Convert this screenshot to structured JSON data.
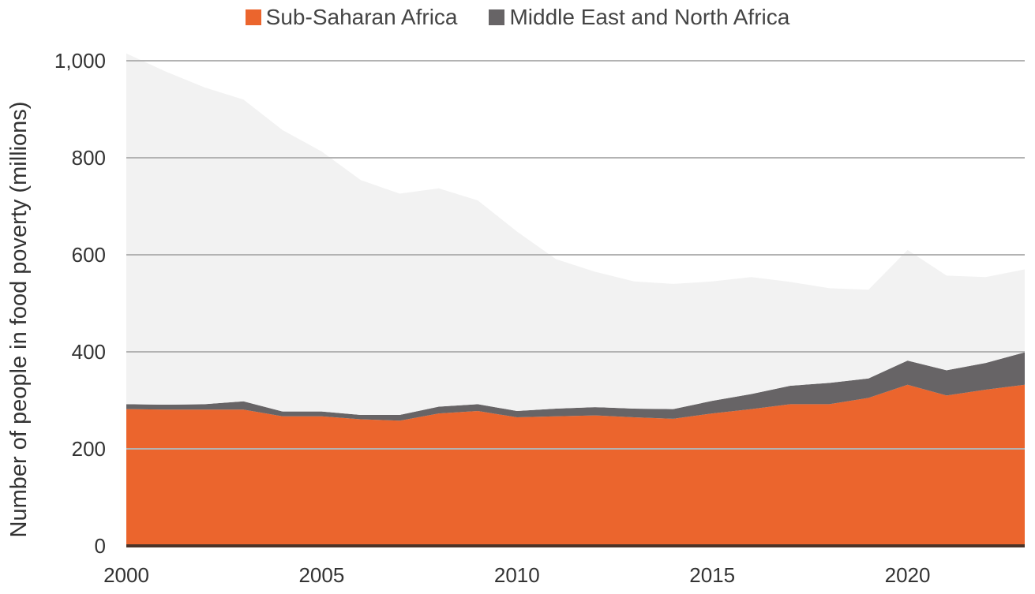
{
  "chart_data": {
    "type": "area",
    "stacked": true,
    "x": [
      2000,
      2001,
      2002,
      2003,
      2004,
      2005,
      2006,
      2007,
      2008,
      2009,
      2010,
      2011,
      2012,
      2013,
      2014,
      2015,
      2016,
      2017,
      2018,
      2019,
      2020,
      2021,
      2022,
      2023
    ],
    "series": [
      {
        "name": "Sub-Saharan Africa",
        "color": "#EB652D",
        "values": [
          282,
          281,
          281,
          281,
          267,
          267,
          261,
          258,
          273,
          278,
          265,
          267,
          269,
          265,
          262,
          273,
          282,
          292,
          292,
          305,
          332,
          310,
          322,
          332
        ]
      },
      {
        "name": "Middle East and North Africa",
        "color": "#676466",
        "values": [
          10,
          10,
          11,
          17,
          10,
          10,
          9,
          12,
          14,
          14,
          13,
          16,
          17,
          18,
          20,
          26,
          31,
          38,
          44,
          40,
          50,
          52,
          55,
          67
        ]
      },
      {
        "color": "#F2F2F2",
        "values": [
          723,
          687,
          653,
          622,
          580,
          536,
          484,
          456,
          450,
          420,
          370,
          308,
          279,
          262,
          258,
          246,
          241,
          214,
          195,
          183,
          228,
          195,
          177,
          171
        ]
      }
    ],
    "ylabel": "Number of people in food poverty (millions)",
    "xticks": [
      "2000",
      "2005",
      "2010",
      "2015",
      "2020"
    ],
    "yticks": [
      "0",
      "200",
      "400",
      "600",
      "800",
      "1,000"
    ],
    "xlim": [
      2000,
      2023
    ],
    "ylim": [
      0,
      1000
    ],
    "grid": "horizontal",
    "legend_position": "top-center"
  }
}
